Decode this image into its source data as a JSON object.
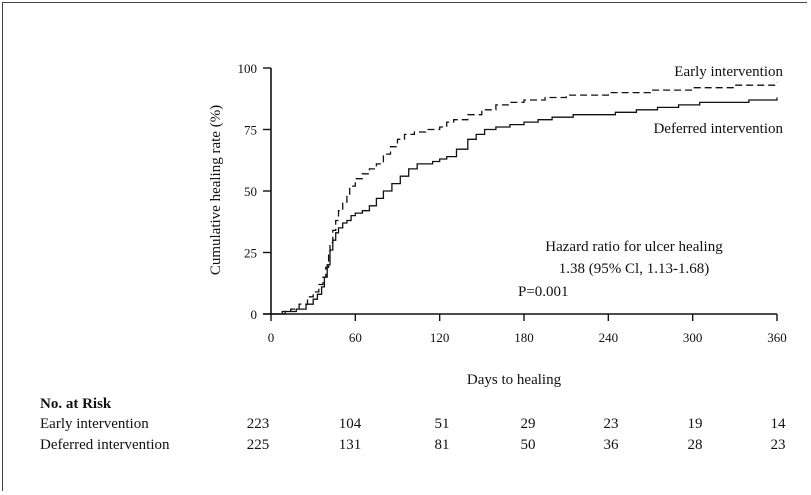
{
  "chart_data": {
    "type": "line",
    "xlabel": "Days to healing",
    "ylabel": "Cumulative healing rate (%)",
    "xlim": [
      0,
      360
    ],
    "ylim": [
      0,
      100
    ],
    "x_ticks": [
      0,
      60,
      120,
      180,
      240,
      300,
      360
    ],
    "y_ticks": [
      0,
      25,
      50,
      75,
      100
    ],
    "grid": false,
    "series": [
      {
        "name": "Early intervention",
        "line_style": "dashed",
        "color": "#111111",
        "points": [
          [
            0,
            0
          ],
          [
            8,
            1
          ],
          [
            14,
            2
          ],
          [
            20,
            4
          ],
          [
            26,
            7
          ],
          [
            30,
            9
          ],
          [
            34,
            12
          ],
          [
            37,
            15
          ],
          [
            39,
            19
          ],
          [
            41,
            24
          ],
          [
            42,
            29
          ],
          [
            44,
            34
          ],
          [
            46,
            38
          ],
          [
            48,
            42
          ],
          [
            51,
            45
          ],
          [
            54,
            48
          ],
          [
            56,
            52
          ],
          [
            60,
            55
          ],
          [
            65,
            57
          ],
          [
            70,
            59
          ],
          [
            75,
            61
          ],
          [
            80,
            65
          ],
          [
            85,
            68
          ],
          [
            90,
            71
          ],
          [
            95,
            73
          ],
          [
            102,
            74
          ],
          [
            110,
            75
          ],
          [
            120,
            76
          ],
          [
            125,
            78
          ],
          [
            130,
            79
          ],
          [
            140,
            81
          ],
          [
            150,
            83
          ],
          [
            160,
            85
          ],
          [
            170,
            86
          ],
          [
            180,
            87
          ],
          [
            195,
            88
          ],
          [
            210,
            89
          ],
          [
            225,
            89
          ],
          [
            240,
            90
          ],
          [
            255,
            90
          ],
          [
            270,
            91
          ],
          [
            285,
            91
          ],
          [
            300,
            92
          ],
          [
            315,
            92
          ],
          [
            330,
            93
          ],
          [
            345,
            93
          ],
          [
            360,
            94
          ]
        ]
      },
      {
        "name": "Deferred intervention",
        "line_style": "solid",
        "color": "#111111",
        "points": [
          [
            0,
            0
          ],
          [
            10,
            1
          ],
          [
            18,
            2
          ],
          [
            25,
            4
          ],
          [
            30,
            6
          ],
          [
            33,
            8
          ],
          [
            36,
            11
          ],
          [
            38,
            15
          ],
          [
            40,
            20
          ],
          [
            42,
            26
          ],
          [
            44,
            30
          ],
          [
            46,
            33
          ],
          [
            48,
            35
          ],
          [
            51,
            37
          ],
          [
            54,
            38
          ],
          [
            57,
            40
          ],
          [
            60,
            41
          ],
          [
            65,
            42
          ],
          [
            70,
            44
          ],
          [
            75,
            47
          ],
          [
            80,
            50
          ],
          [
            86,
            53
          ],
          [
            92,
            56
          ],
          [
            98,
            59
          ],
          [
            104,
            61
          ],
          [
            115,
            62
          ],
          [
            120,
            63
          ],
          [
            125,
            64
          ],
          [
            132,
            67
          ],
          [
            140,
            71
          ],
          [
            146,
            73
          ],
          [
            152,
            75
          ],
          [
            160,
            76
          ],
          [
            170,
            77
          ],
          [
            180,
            78
          ],
          [
            190,
            79
          ],
          [
            200,
            80
          ],
          [
            215,
            81
          ],
          [
            230,
            81
          ],
          [
            245,
            82
          ],
          [
            260,
            83
          ],
          [
            275,
            84
          ],
          [
            290,
            85
          ],
          [
            305,
            86
          ],
          [
            320,
            86
          ],
          [
            340,
            87
          ],
          [
            360,
            88
          ]
        ]
      }
    ],
    "series_labels": [
      "Early intervention",
      "Deferred intervention"
    ],
    "annotation": {
      "line1": "Hazard ratio for ulcer healing",
      "line2": "1.38 (95% Cl, 1.13-1.68)",
      "line3": "P=0.001"
    },
    "risk_table": {
      "title": "No. at Risk",
      "rows": [
        {
          "label": "Early intervention",
          "values": [
            223,
            104,
            51,
            29,
            23,
            19,
            14
          ]
        },
        {
          "label": "Deferred intervention",
          "values": [
            225,
            131,
            81,
            50,
            36,
            28,
            23
          ]
        }
      ]
    }
  }
}
